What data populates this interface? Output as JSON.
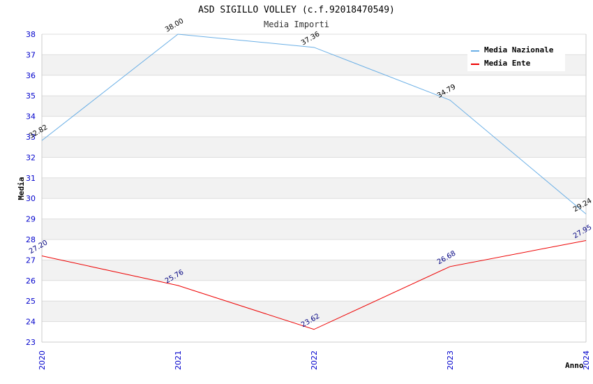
{
  "chart_data": {
    "type": "line",
    "title": "ASD SIGILLO VOLLEY (c.f.92018470549)",
    "subtitle": "Media Importi",
    "xlabel": "Anno",
    "ylabel": "Media",
    "x": [
      "2020",
      "2021",
      "2022",
      "2023",
      "2024"
    ],
    "ylim": [
      23,
      38
    ],
    "yticks": [
      23,
      24,
      25,
      26,
      27,
      28,
      29,
      30,
      31,
      32,
      33,
      34,
      35,
      36,
      37,
      38
    ],
    "grid": "horizontal alternating bands",
    "legend_position": "top-right",
    "series": [
      {
        "name": "Media Nazionale",
        "color": "#6aafe6",
        "label_color": "#000000",
        "values": [
          32.82,
          38.0,
          37.36,
          34.79,
          29.24
        ],
        "labels": [
          "32.82",
          "38.00",
          "37.36",
          "34.79",
          "29.24"
        ]
      },
      {
        "name": "Media Ente",
        "color": "#ee0000",
        "label_color": "#000080",
        "values": [
          27.2,
          25.76,
          23.62,
          26.68,
          27.95
        ],
        "labels": [
          "27.20",
          "25.76",
          "23.62",
          "26.68",
          "27.95"
        ]
      }
    ]
  }
}
